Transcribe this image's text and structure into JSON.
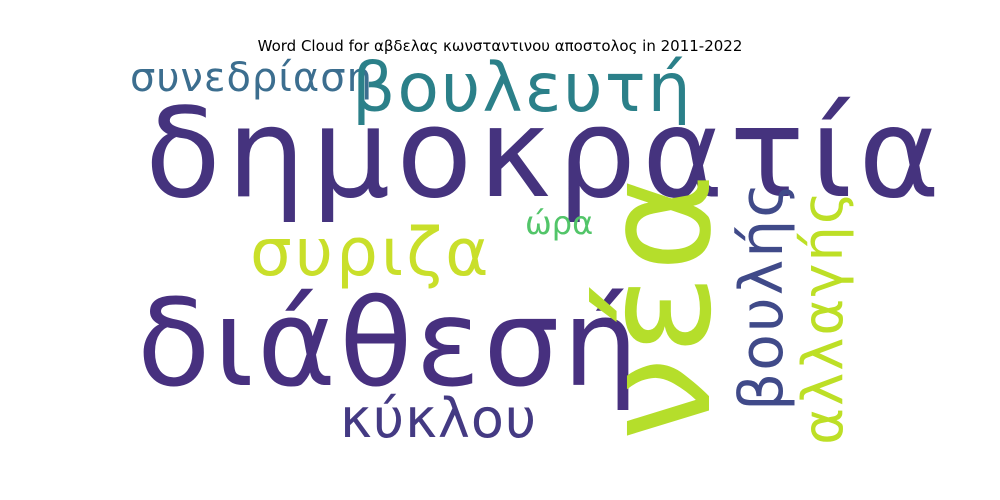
{
  "title": "Word Cloud for αβδελας κωνσταντινου αποστολος in 2011-2022",
  "words": {
    "dimokratia": {
      "text": "δημοκρατία",
      "color": "#45337e"
    },
    "diathesi": {
      "text": "διάθεσή",
      "color": "#47307f"
    },
    "vouleuti": {
      "text": "βουλευτή",
      "color": "#2b8089"
    },
    "synedriasi": {
      "text": "συνεδρίαση",
      "color": "#3c6e8f"
    },
    "syriza": {
      "text": "συριζα",
      "color": "#c9df2a"
    },
    "ora": {
      "text": "ώρα",
      "color": "#52c569"
    },
    "kyklou": {
      "text": "κύκλου",
      "color": "#443a83"
    },
    "nea": {
      "text": "νέα",
      "color": "#b5de2b"
    },
    "voulis": {
      "text": "βουλής",
      "color": "#404a89"
    },
    "allagis": {
      "text": "αλλαγής",
      "color": "#bddf26"
    }
  }
}
